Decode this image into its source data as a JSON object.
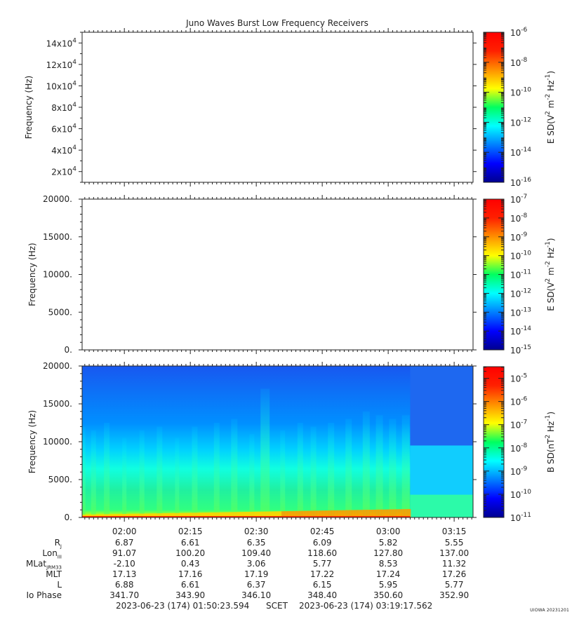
{
  "title": "Juno Waves Burst Low Frequency Receivers",
  "colors": {
    "frame": "#222222",
    "background": "#ffffff"
  },
  "chart_data": [
    {
      "type": "heatmap",
      "panel": "top",
      "ylabel": "Frequency (Hz)",
      "yticks": [
        {
          "mant": "2x10",
          "exp": "4",
          "value": 20000
        },
        {
          "mant": "4x10",
          "exp": "4",
          "value": 40000
        },
        {
          "mant": "6x10",
          "exp": "4",
          "value": 60000
        },
        {
          "mant": "8x10",
          "exp": "4",
          "value": 80000
        },
        {
          "mant": "10x10",
          "exp": "4",
          "value": 100000
        },
        {
          "mant": "12x10",
          "exp": "4",
          "value": 120000
        },
        {
          "mant": "14x10",
          "exp": "4",
          "value": 140000
        }
      ],
      "ylim": [
        10000,
        150000
      ],
      "colorbar": {
        "label_parts": [
          "E SD(V",
          "2",
          " m",
          "-2",
          " Hz",
          "-1",
          ")"
        ],
        "scale": "log",
        "range": [
          -16,
          -6
        ],
        "ticks": [
          {
            "base": "10",
            "exp": "-6"
          },
          {
            "base": "10",
            "exp": "-8"
          },
          {
            "base": "10",
            "exp": "-10"
          },
          {
            "base": "10",
            "exp": "-12"
          },
          {
            "base": "10",
            "exp": "-14"
          },
          {
            "base": "10",
            "exp": "-16"
          }
        ]
      },
      "data": "empty"
    },
    {
      "type": "heatmap",
      "panel": "middle",
      "ylabel": "Frequency (Hz)",
      "yticks": [
        "0.",
        "5000.",
        "10000.",
        "15000.",
        "20000."
      ],
      "ylim": [
        0,
        20000
      ],
      "colorbar": {
        "label_parts": [
          "E SD(V",
          "2",
          " m",
          "-2",
          " Hz",
          "-1",
          ")"
        ],
        "scale": "log",
        "range": [
          -15,
          -7
        ],
        "ticks": [
          {
            "base": "10",
            "exp": "-7"
          },
          {
            "base": "10",
            "exp": "-8"
          },
          {
            "base": "10",
            "exp": "-9"
          },
          {
            "base": "10",
            "exp": "-10"
          },
          {
            "base": "10",
            "exp": "-11"
          },
          {
            "base": "10",
            "exp": "-12"
          },
          {
            "base": "10",
            "exp": "-13"
          },
          {
            "base": "10",
            "exp": "-14"
          },
          {
            "base": "10",
            "exp": "-15"
          }
        ]
      },
      "data": "empty"
    },
    {
      "type": "heatmap",
      "panel": "bottom",
      "ylabel": "Frequency (Hz)",
      "yticks": [
        "0.",
        "5000.",
        "10000.",
        "15000.",
        "20000."
      ],
      "ylim": [
        0,
        20000
      ],
      "xlim": [
        "01:50:23.594",
        "03:19:17.562"
      ],
      "xticks": [
        "02:00",
        "02:15",
        "02:30",
        "02:45",
        "03:00",
        "03:15"
      ],
      "colorbar": {
        "label_parts": [
          "B SD(nT",
          "2",
          " Hz",
          "-1",
          ")"
        ],
        "scale": "log",
        "range": [
          -11,
          -4.5
        ],
        "ticks": [
          {
            "base": "10",
            "exp": "-5"
          },
          {
            "base": "10",
            "exp": "-6"
          },
          {
            "base": "10",
            "exp": "-7"
          },
          {
            "base": "10",
            "exp": "-8"
          },
          {
            "base": "10",
            "exp": "-9"
          },
          {
            "base": "10",
            "exp": "-10"
          },
          {
            "base": "10",
            "exp": "-11"
          }
        ]
      },
      "background_level": -10.3,
      "data_end_time": "03:05",
      "bursts": [
        {
          "time": "01:50:30",
          "top_hz": 12000,
          "level": -8.0
        },
        {
          "time": "01:53",
          "top_hz": 11500,
          "level": -8.1
        },
        {
          "time": "01:56",
          "top_hz": 12500,
          "level": -8.0
        },
        {
          "time": "02:00",
          "top_hz": 10500,
          "level": -8.2
        },
        {
          "time": "02:04",
          "top_hz": 11500,
          "level": -8.1
        },
        {
          "time": "02:08",
          "top_hz": 12000,
          "level": -8.0
        },
        {
          "time": "02:12",
          "top_hz": 10500,
          "level": -8.2
        },
        {
          "time": "02:16",
          "top_hz": 12000,
          "level": -8.0
        },
        {
          "time": "02:21",
          "top_hz": 12500,
          "level": -8.0
        },
        {
          "time": "02:25",
          "top_hz": 13000,
          "level": -7.9
        },
        {
          "time": "02:29",
          "top_hz": 11000,
          "level": -8.1
        },
        {
          "time": "02:32",
          "top_hz": 17000,
          "level": -7.5
        },
        {
          "time": "02:36",
          "top_hz": 11500,
          "level": -8.1
        },
        {
          "time": "02:40",
          "top_hz": 12500,
          "level": -8.0
        },
        {
          "time": "02:43",
          "top_hz": 12000,
          "level": -8.0
        },
        {
          "time": "02:47",
          "top_hz": 12500,
          "level": -7.9
        },
        {
          "time": "02:51",
          "top_hz": 13000,
          "level": -7.9
        },
        {
          "time": "02:55",
          "top_hz": 14000,
          "level": -7.8
        },
        {
          "time": "02:58",
          "top_hz": 13500,
          "level": -7.8
        },
        {
          "time": "03:01",
          "top_hz": 13000,
          "level": -7.8
        },
        {
          "time": "03:04",
          "top_hz": 13500,
          "level": -7.7
        }
      ]
    }
  ],
  "ephemeris": {
    "rows": [
      {
        "label": "R",
        "sub": "J",
        "values": [
          "6.87",
          "6.61",
          "6.35",
          "6.09",
          "5.82",
          "5.55"
        ]
      },
      {
        "label": "Lon",
        "sub": "III",
        "values": [
          "91.07",
          "100.20",
          "109.40",
          "118.60",
          "127.80",
          "137.00"
        ]
      },
      {
        "label": "MLat",
        "sub": "JRM33",
        "values": [
          "-2.10",
          "0.43",
          "3.06",
          "5.77",
          "8.53",
          "11.32"
        ]
      },
      {
        "label": "MLT",
        "sub": "",
        "values": [
          "17.13",
          "17.16",
          "17.19",
          "17.22",
          "17.24",
          "17.26"
        ]
      },
      {
        "label": "L",
        "sub": "",
        "values": [
          "6.88",
          "6.61",
          "6.37",
          "6.15",
          "5.95",
          "5.77"
        ]
      },
      {
        "label": "Io Phase",
        "sub": "",
        "values": [
          "341.70",
          "343.90",
          "346.10",
          "348.40",
          "350.60",
          "352.90"
        ]
      }
    ]
  },
  "footer": {
    "start": "2023-06-23 (174) 01:50:23.594",
    "scet": "SCET",
    "end": "2023-06-23 (174) 03:19:17.562"
  },
  "stamp": "UIOWA 20231201"
}
